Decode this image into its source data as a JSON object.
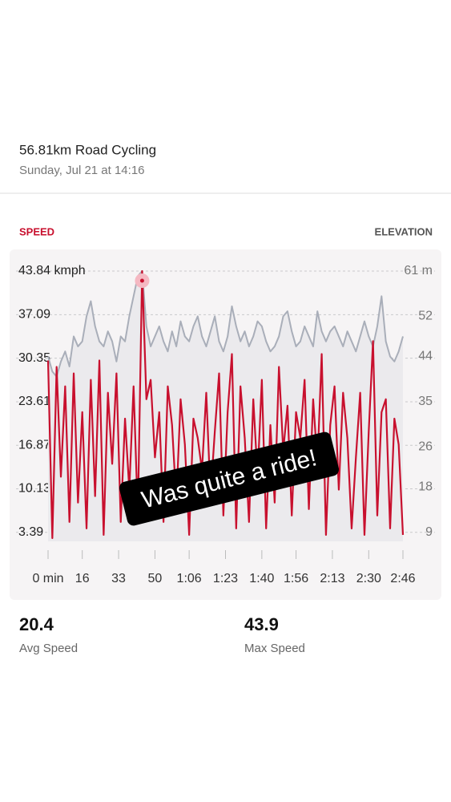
{
  "header": {
    "title": "56.81km Road Cycling",
    "subtitle": "Sunday, Jul 21 at 14:16"
  },
  "chart_data": {
    "type": "line",
    "x": [
      0,
      2,
      4,
      6,
      8,
      10,
      12,
      14,
      16,
      18,
      20,
      22,
      24,
      26,
      28,
      30,
      32,
      34,
      36,
      38,
      40,
      42,
      44,
      46,
      48,
      50,
      52,
      54,
      56,
      58,
      60,
      62,
      64,
      66,
      68,
      70,
      72,
      74,
      76,
      78,
      80,
      82,
      84,
      86,
      88,
      90,
      92,
      94,
      96,
      98,
      100,
      102,
      104,
      106,
      108,
      110,
      112,
      114,
      116,
      118,
      120,
      122,
      124,
      126,
      128,
      130,
      132,
      134,
      136,
      138,
      140,
      142,
      144,
      146,
      148,
      150,
      152,
      154,
      156,
      158,
      160,
      162,
      164,
      166
    ],
    "series": [
      {
        "name": "SPEED",
        "color": "#c8102e",
        "values": [
          30,
          2.5,
          29,
          12,
          26,
          5,
          28,
          8,
          22,
          4,
          27,
          9,
          30,
          3,
          25,
          14,
          28,
          5,
          21,
          10,
          26,
          6,
          43.84,
          24,
          27,
          15,
          22,
          5,
          26,
          20,
          8,
          24,
          17,
          3,
          21,
          18,
          13,
          25,
          9,
          19,
          28,
          6,
          22,
          31,
          4,
          26,
          18,
          5,
          24,
          12,
          27,
          4,
          20,
          8,
          29,
          16,
          23,
          6,
          22,
          18,
          27,
          7,
          24,
          14,
          31,
          3,
          20,
          26,
          10,
          25,
          18,
          4,
          15,
          25,
          3,
          19,
          33,
          6,
          22,
          24,
          4,
          21,
          17,
          3
        ]
      },
      {
        "name": "ELEVATION",
        "color": "#a9aeb9",
        "axis": "y2",
        "values": [
          44,
          41,
          40,
          43,
          45,
          42,
          48,
          46,
          47,
          52,
          55,
          50,
          47,
          46,
          49,
          47,
          43,
          48,
          47,
          52,
          56,
          60,
          61,
          50,
          46,
          48,
          50,
          47,
          45,
          49,
          46,
          51,
          48,
          47,
          50,
          52,
          48,
          46,
          49,
          52,
          47,
          45,
          48,
          54,
          50,
          47,
          49,
          46,
          48,
          51,
          50,
          47,
          45,
          46,
          48,
          52,
          53,
          49,
          46,
          47,
          50,
          48,
          46,
          53,
          49,
          47,
          49,
          50,
          48,
          46,
          49,
          47,
          45,
          48,
          51,
          48,
          46,
          50,
          56,
          47,
          44,
          43,
          45,
          48
        ]
      }
    ],
    "xlim": [
      0,
      166
    ],
    "xticks": [
      {
        "value": 0,
        "label": "0 min"
      },
      16,
      33,
      50,
      {
        "value": 66,
        "label": "1:06"
      },
      {
        "value": 83,
        "label": "1:23"
      },
      {
        "value": 100,
        "label": "1:40"
      },
      {
        "value": 116,
        "label": "1:56"
      },
      {
        "value": 133,
        "label": "2:13"
      },
      {
        "value": 150,
        "label": "2:30"
      },
      {
        "value": 166,
        "label": "2:46"
      }
    ],
    "ylim": [
      2,
      43.84
    ],
    "yticks": [
      3.39,
      10.13,
      16.87,
      23.61,
      30.35,
      37.09,
      {
        "value": 43.84,
        "label": "43.84 kmph"
      }
    ],
    "y2lim": [
      7.2,
      61
    ],
    "y2ticks": [
      9,
      18,
      26,
      35,
      44,
      52,
      {
        "value": 61,
        "label": "61 m"
      }
    ],
    "grid": true
  },
  "stats": [
    {
      "value": "20.4",
      "label": "Avg Speed"
    },
    {
      "value": "43.9",
      "label": "Max Speed"
    }
  ],
  "caption": "Was quite a ride!"
}
